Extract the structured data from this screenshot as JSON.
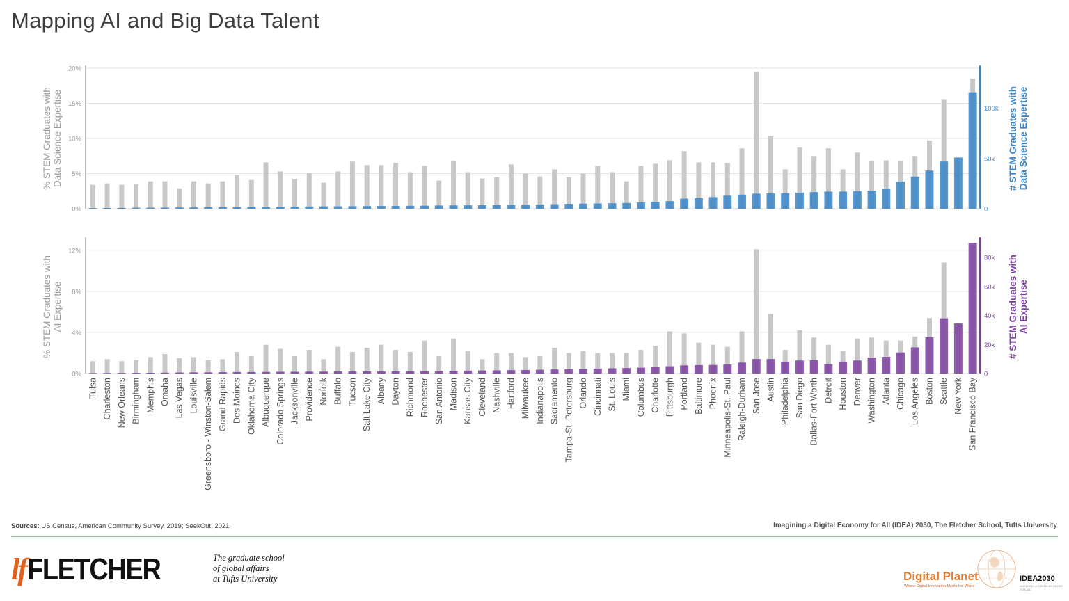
{
  "title": "Mapping AI and Big Data Talent",
  "chart_data": [
    {
      "type": "bar",
      "name": "data-science",
      "categories": [
        "Tulsa",
        "Charleston",
        "New Orleans",
        "Birmingham",
        "Memphis",
        "Omaha",
        "Las Vegas",
        "Louisville",
        "Greensboro - Winston-Salem",
        "Grand Rapids",
        "Des Moines",
        "Oklahoma City",
        "Albuquerque",
        "Colorado Springs",
        "Jacksonville",
        "Providence",
        "Norfolk",
        "Buffalo",
        "Tucson",
        "Salt Lake City",
        "Albany",
        "Dayton",
        "Richmond",
        "Rochester",
        "San Antonio",
        "Madison",
        "Kansas City",
        "Cleveland",
        "Nashville",
        "Hartford",
        "Milwaukee",
        "Indianapolis",
        "Sacramento",
        "Tampa-St. Petersburg",
        "Orlando",
        "Cincinnati",
        "St. Louis",
        "Miami",
        "Columbus",
        "Charlotte",
        "Pittsburgh",
        "Portland",
        "Baltimore",
        "Phoenix",
        "Minneapolis-St. Paul",
        "Raleigh-Durham",
        "San Jose",
        "Austin",
        "Philadelphia",
        "San Diego",
        "Dallas-Fort Worth",
        "Detroit",
        "Houston",
        "Denver",
        "Washington",
        "Atlanta",
        "Chicago",
        "Los Angeles",
        "Boston",
        "Seattle",
        "New York",
        "San Francisco Bay"
      ],
      "ylabel": "% STEM Graduates with\nData Science Expertise",
      "y2label": "# STEM Graduates with\nData Science Expertise",
      "ylim": [
        0,
        20
      ],
      "y2lim": [
        0,
        140000
      ],
      "yticks": [
        "0%",
        "5%",
        "10%",
        "15%",
        "20%"
      ],
      "y2ticks": [
        "0",
        "50k",
        "100k"
      ],
      "accent": "#3a86c8",
      "series": [
        {
          "axis": "left",
          "color": "#c8c8c8",
          "values": [
            3.4,
            3.6,
            3.4,
            3.5,
            3.9,
            3.9,
            2.9,
            3.9,
            3.6,
            3.9,
            4.8,
            4.1,
            6.6,
            5.3,
            4.2,
            5.1,
            3.7,
            5.3,
            6.7,
            6.2,
            6.2,
            6.5,
            5.2,
            6.1,
            4.0,
            6.8,
            5.2,
            4.3,
            4.5,
            6.3,
            5.0,
            4.6,
            5.6,
            4.5,
            5.0,
            6.1,
            5.2,
            3.9,
            6.1,
            6.4,
            6.9,
            8.2,
            6.6,
            6.6,
            6.5,
            8.6,
            19.5,
            10.3,
            5.6,
            8.7,
            7.5,
            8.6,
            5.6,
            8.0,
            6.8,
            6.9,
            6.8,
            7.5,
            9.7,
            15.5,
            7.2,
            18.5
          ]
        },
        {
          "axis": "right",
          "color": "#3a86c8",
          "values": [
            600,
            700,
            800,
            900,
            1000,
            1100,
            1200,
            1300,
            1400,
            1500,
            1700,
            1800,
            1900,
            2000,
            2100,
            2200,
            2300,
            2400,
            2500,
            2600,
            2700,
            2800,
            2900,
            3000,
            3200,
            3300,
            3400,
            3500,
            3600,
            3800,
            4000,
            4200,
            4500,
            4800,
            5000,
            5200,
            5400,
            5700,
            6200,
            6800,
            7500,
            10000,
            10500,
            11500,
            13000,
            14000,
            15000,
            15300,
            15500,
            16000,
            16500,
            17000,
            17000,
            17500,
            18000,
            20000,
            27000,
            32000,
            38000,
            47000,
            51000,
            116000
          ]
        }
      ]
    },
    {
      "type": "bar",
      "name": "ai",
      "categories": [
        "Tulsa",
        "Charleston",
        "New Orleans",
        "Birmingham",
        "Memphis",
        "Omaha",
        "Las Vegas",
        "Louisville",
        "Greensboro - Winston-Salem",
        "Grand Rapids",
        "Des Moines",
        "Oklahoma City",
        "Albuquerque",
        "Colorado Springs",
        "Jacksonville",
        "Providence",
        "Norfolk",
        "Buffalo",
        "Tucson",
        "Salt Lake City",
        "Albany",
        "Dayton",
        "Richmond",
        "Rochester",
        "San Antonio",
        "Madison",
        "Kansas City",
        "Cleveland",
        "Nashville",
        "Hartford",
        "Milwaukee",
        "Indianapolis",
        "Sacramento",
        "Tampa-St. Petersburg",
        "Orlando",
        "Cincinnati",
        "St. Louis",
        "Miami",
        "Columbus",
        "Charlotte",
        "Pittsburgh",
        "Portland",
        "Baltimore",
        "Phoenix",
        "Minneapolis-St. Paul",
        "Raleigh-Durham",
        "San Jose",
        "Austin",
        "Philadelphia",
        "San Diego",
        "Dallas-Fort Worth",
        "Detroit",
        "Houston",
        "Denver",
        "Washington",
        "Atlanta",
        "Chicago",
        "Los Angeles",
        "Boston",
        "Seattle",
        "New York",
        "San Francisco Bay"
      ],
      "ylabel": "% STEM Graduates with\nAI Expertise",
      "y2label": "# STEM Graduates with\nAI Expertise",
      "ylim": [
        0,
        13
      ],
      "y2lim": [
        0,
        92000
      ],
      "yticks": [
        "0%",
        "4%",
        "8%",
        "12%"
      ],
      "y2ticks": [
        "0",
        "20k",
        "40k",
        "60k",
        "80k"
      ],
      "accent": "#7b3fa0",
      "series": [
        {
          "axis": "left",
          "color": "#c8c8c8",
          "values": [
            1.2,
            1.4,
            1.2,
            1.3,
            1.6,
            1.9,
            1.5,
            1.6,
            1.3,
            1.4,
            2.1,
            1.7,
            2.8,
            2.4,
            1.7,
            2.3,
            1.4,
            2.6,
            2.1,
            2.5,
            2.8,
            2.3,
            2.1,
            3.2,
            1.7,
            3.4,
            2.2,
            1.4,
            2.0,
            2.0,
            1.6,
            1.7,
            2.5,
            2.0,
            2.2,
            2.0,
            2.0,
            2.0,
            2.3,
            2.7,
            4.1,
            3.9,
            3.0,
            2.8,
            2.6,
            4.1,
            12.1,
            5.8,
            2.3,
            4.2,
            3.5,
            2.8,
            2.2,
            3.4,
            3.5,
            3.2,
            3.2,
            3.6,
            5.4,
            10.8,
            4.8,
            12.5
          ]
        },
        {
          "axis": "right",
          "color": "#7b3fa0",
          "values": [
            300,
            350,
            400,
            450,
            500,
            600,
            700,
            800,
            800,
            900,
            1000,
            1000,
            1100,
            1200,
            1200,
            1300,
            1300,
            1400,
            1400,
            1500,
            1500,
            1600,
            1600,
            1700,
            1800,
            1900,
            2000,
            2100,
            2200,
            2300,
            2400,
            2600,
            2800,
            3000,
            3200,
            3400,
            3600,
            3800,
            4000,
            4400,
            5000,
            5600,
            5800,
            5900,
            6200,
            7500,
            10000,
            10000,
            8200,
            9000,
            9100,
            6500,
            8200,
            9000,
            11000,
            11500,
            14500,
            18000,
            25000,
            38000,
            34500,
            90000
          ]
        }
      ]
    }
  ],
  "footer": {
    "sources_label": "Sources:",
    "sources_text": " US Census, American Community Survey, 2019; SeekOut, 2021",
    "credit": "Imagining a Digital Economy for All (IDEA) 2030, The Fletcher School, Tufts University"
  },
  "logos": {
    "fletcher_mark": "lf",
    "fletcher_word": "FLETCHER",
    "tagline_lines": [
      "The graduate school",
      "of global affairs",
      "at Tufts University"
    ],
    "digital_planet": "Digital Planet",
    "digital_planet_tag": "Where Digital Innovation Meets the World",
    "idea_logo": "IDEA2030",
    "idea_tag": "IMAGINING A DIGITAL ECONOMY FOR ALL"
  }
}
